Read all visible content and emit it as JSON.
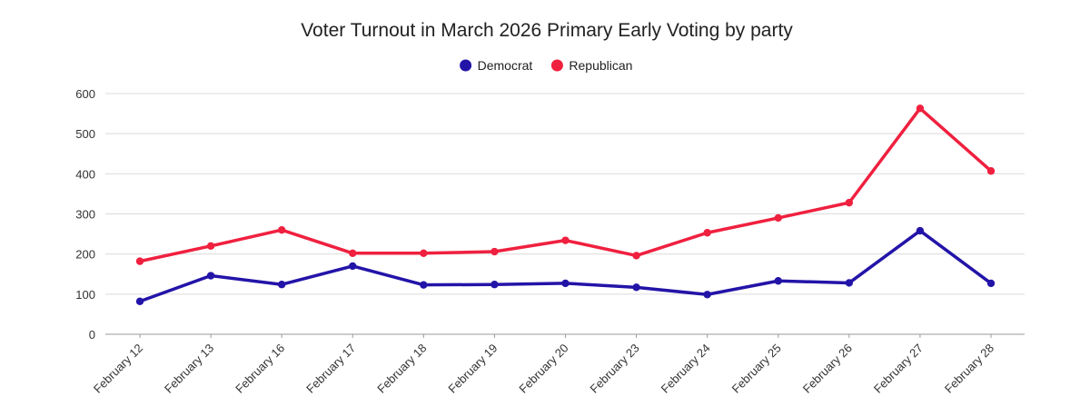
{
  "chart_data": {
    "type": "line",
    "title": "Voter Turnout in March 2026 Primary Early Voting by party",
    "xlabel": "",
    "ylabel": "",
    "categories": [
      "February 12",
      "February 13",
      "February 16",
      "February 17",
      "February 18",
      "February 19",
      "February 20",
      "February 23",
      "February 24",
      "February 25",
      "February 26",
      "February 27",
      "February 28"
    ],
    "series": [
      {
        "name": "Democrat",
        "color": "#2314a8",
        "values": [
          82,
          146,
          124,
          170,
          123,
          124,
          127,
          117,
          99,
          133,
          128,
          258,
          127
        ]
      },
      {
        "name": "Republican",
        "color": "#f0203f",
        "values": [
          182,
          220,
          260,
          202,
          202,
          206,
          234,
          196,
          253,
          290,
          328,
          563,
          407
        ]
      }
    ],
    "yticks": [
      0,
      100,
      200,
      300,
      400,
      500,
      600
    ],
    "ylim": [
      0,
      600
    ],
    "grid": true,
    "legend": "top-center"
  }
}
